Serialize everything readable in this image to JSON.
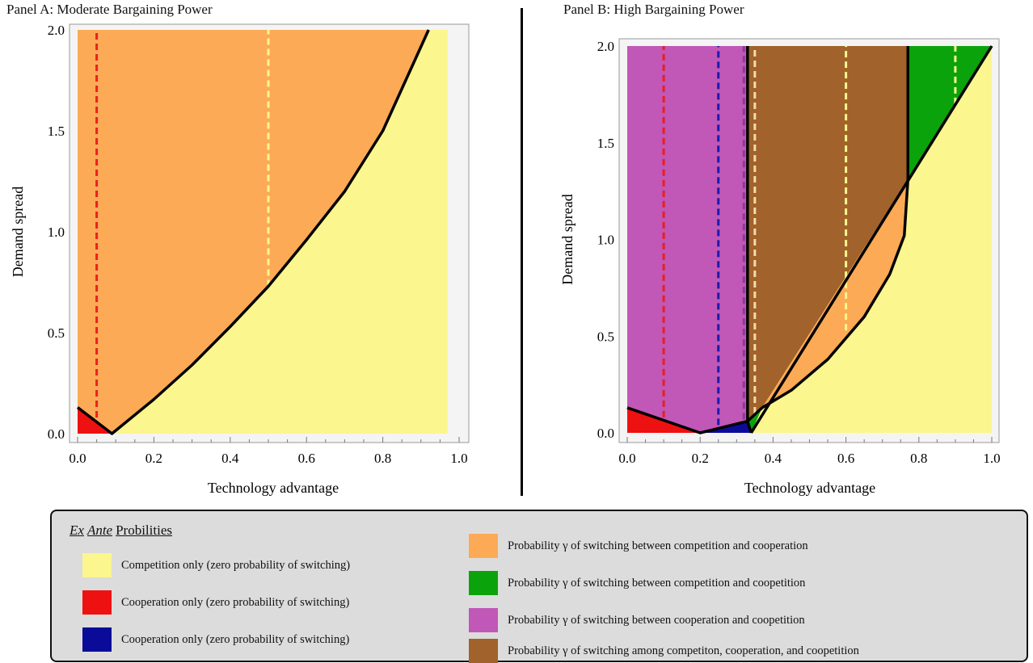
{
  "panels": [
    {
      "title": "Panel A: Moderate Bargaining Power"
    },
    {
      "title": "Panel B: High Bargaining Power"
    }
  ],
  "colors": {
    "yellow": "#fbf68d",
    "red": "#ee1111",
    "orange": "#fcaa55",
    "blue": "#0b0b9a",
    "green": "#0ba30b",
    "purple": "#c157b6",
    "brown": "#a1622b"
  },
  "chart_data": [
    {
      "type": "area",
      "title": "Panel A: Moderate Bargaining Power",
      "xlabel": "Technology advantage",
      "ylabel": "Demand spread",
      "xlim": [
        0,
        1
      ],
      "ylim": [
        0,
        2
      ],
      "xticks": [
        "0.0",
        "0.2",
        "0.4",
        "0.6",
        "0.8",
        "1.0"
      ],
      "yticks": [
        "0.0",
        "0.5",
        "1.0",
        "1.5",
        "2.0"
      ],
      "regions": [
        {
          "name": "competition-only",
          "color": "yellow",
          "points": [
            [
              0,
              0
            ],
            [
              0.97,
              0
            ],
            [
              0.97,
              2
            ],
            [
              0,
              2
            ]
          ]
        },
        {
          "name": "switch-competition-cooperation",
          "color": "orange",
          "points": [
            [
              0,
              0.13
            ],
            [
              0.09,
              0
            ],
            [
              0.2,
              0.17
            ],
            [
              0.3,
              0.34
            ],
            [
              0.4,
              0.53
            ],
            [
              0.5,
              0.73
            ],
            [
              0.6,
              0.96
            ],
            [
              0.7,
              1.2
            ],
            [
              0.8,
              1.5
            ],
            [
              0.92,
              2.0
            ],
            [
              0,
              2
            ]
          ]
        },
        {
          "name": "cooperation-only",
          "color": "red",
          "points": [
            [
              0,
              0
            ],
            [
              0,
              0.13
            ],
            [
              0.09,
              0
            ]
          ]
        }
      ],
      "boundaries": [
        [
          [
            0,
            0.13
          ],
          [
            0.09,
            0
          ],
          [
            0.2,
            0.17
          ],
          [
            0.3,
            0.34
          ],
          [
            0.4,
            0.53
          ],
          [
            0.5,
            0.73
          ],
          [
            0.6,
            0.96
          ],
          [
            0.7,
            1.2
          ],
          [
            0.8,
            1.5
          ],
          [
            0.92,
            2.0
          ]
        ]
      ],
      "dashed": [
        {
          "x": 0.05,
          "y": [
            0.08,
            2
          ],
          "color": "#e82020"
        },
        {
          "x": 0.5,
          "y": [
            0.73,
            2
          ],
          "color": "#fbf68d"
        }
      ]
    },
    {
      "type": "area",
      "title": "Panel B: High Bargaining Power",
      "xlabel": "Technology advantage",
      "ylabel": "Demand spread",
      "xlim": [
        0,
        1
      ],
      "ylim": [
        0,
        2
      ],
      "xticks": [
        "0.0",
        "0.2",
        "0.4",
        "0.6",
        "0.8",
        "1.0"
      ],
      "yticks": [
        "0.0",
        "0.5",
        "1.0",
        "1.5",
        "2.0"
      ],
      "regions": [
        {
          "name": "competition-only",
          "color": "yellow",
          "points": [
            [
              0,
              0
            ],
            [
              1,
              0
            ],
            [
              1,
              2
            ],
            [
              0,
              2
            ]
          ]
        },
        {
          "name": "switch-cooperation-coopetition",
          "color": "purple",
          "points": [
            [
              0,
              0.13
            ],
            [
              0.2,
              0
            ],
            [
              0.33,
              0.06
            ],
            [
              0.33,
              2
            ],
            [
              0,
              2
            ]
          ]
        },
        {
          "name": "switch-among-all",
          "color": "brown",
          "points": [
            [
              0.33,
              0.06
            ],
            [
              0.37,
              0.13
            ],
            [
              0.77,
              1.31
            ],
            [
              0.77,
              2
            ],
            [
              0.33,
              2
            ]
          ]
        },
        {
          "name": "switch-competition-coopetition-top",
          "color": "green",
          "points": [
            [
              0.77,
              1.31
            ],
            [
              1,
              2
            ],
            [
              0.77,
              2
            ]
          ]
        },
        {
          "name": "switch-competition-cooperation",
          "color": "orange",
          "points": [
            [
              0.37,
              0.13
            ],
            [
              0.45,
              0.22
            ],
            [
              0.55,
              0.38
            ],
            [
              0.65,
              0.6
            ],
            [
              0.72,
              0.82
            ],
            [
              0.76,
              1.02
            ],
            [
              0.77,
              1.31
            ]
          ]
        },
        {
          "name": "cooperation-only-red",
          "color": "red",
          "points": [
            [
              0,
              0
            ],
            [
              0,
              0.13
            ],
            [
              0.2,
              0
            ]
          ]
        },
        {
          "name": "cooperation-only-blue",
          "color": "blue",
          "points": [
            [
              0.2,
              0
            ],
            [
              0.33,
              0.06
            ],
            [
              0.34,
              0
            ]
          ]
        },
        {
          "name": "switch-competition-coopetition-small",
          "color": "green",
          "points": [
            [
              0.33,
              0.06
            ],
            [
              0.37,
              0.13
            ],
            [
              0.34,
              0
            ]
          ]
        }
      ],
      "boundaries": [
        [
          [
            0,
            0.13
          ],
          [
            0.2,
            0
          ],
          [
            0.33,
            0.06
          ],
          [
            0.37,
            0.13
          ]
        ],
        [
          [
            0.34,
            0
          ],
          [
            1,
            2
          ]
        ],
        [
          [
            0.33,
            0.06
          ],
          [
            0.33,
            2
          ]
        ],
        [
          [
            0.77,
            1.31
          ],
          [
            0.77,
            2
          ]
        ],
        [
          [
            0.33,
            0.06
          ],
          [
            0.34,
            0
          ]
        ],
        [
          [
            0.37,
            0.13
          ],
          [
            0.45,
            0.22
          ],
          [
            0.55,
            0.38
          ],
          [
            0.65,
            0.6
          ],
          [
            0.72,
            0.82
          ],
          [
            0.76,
            1.02
          ],
          [
            0.77,
            1.31
          ]
        ]
      ],
      "dashed": [
        {
          "x": 0.1,
          "y": [
            0.08,
            2
          ],
          "color": "#e82020"
        },
        {
          "x": 0.25,
          "y": [
            0.04,
            2
          ],
          "color": "#1a1ab0"
        },
        {
          "x": 0.32,
          "y": [
            0.07,
            2
          ],
          "color": "#8a3a9a"
        },
        {
          "x": 0.35,
          "y": [
            0.1,
            2
          ],
          "color": "#f1dcb0"
        },
        {
          "x": 0.6,
          "y": [
            0.53,
            2
          ],
          "color": "#fbf68d"
        },
        {
          "x": 0.9,
          "y": [
            1.7,
            2
          ],
          "color": "#fbf68d"
        }
      ]
    }
  ],
  "legend": {
    "title_italic1": "Ex",
    "title_italic2": "Ante",
    "title_rest": "Probilities",
    "items": [
      {
        "color": "yellow",
        "label": "Competition only (zero probability of switching)"
      },
      {
        "color": "red",
        "label": "Cooperation only (zero probability of switching)"
      },
      {
        "color": "blue",
        "label": "Cooperation only (zero probability of switching)"
      },
      {
        "color": "orange",
        "label": "Probability γ of switching between competition and cooperation"
      },
      {
        "color": "green",
        "label": "Probability γ of switching between competition and coopetition"
      },
      {
        "color": "purple",
        "label": "Probability γ of switching between cooperation and coopetition"
      },
      {
        "color": "brown",
        "label": "Probability γ of switching among competiton, cooperation, and coopetition"
      }
    ]
  }
}
